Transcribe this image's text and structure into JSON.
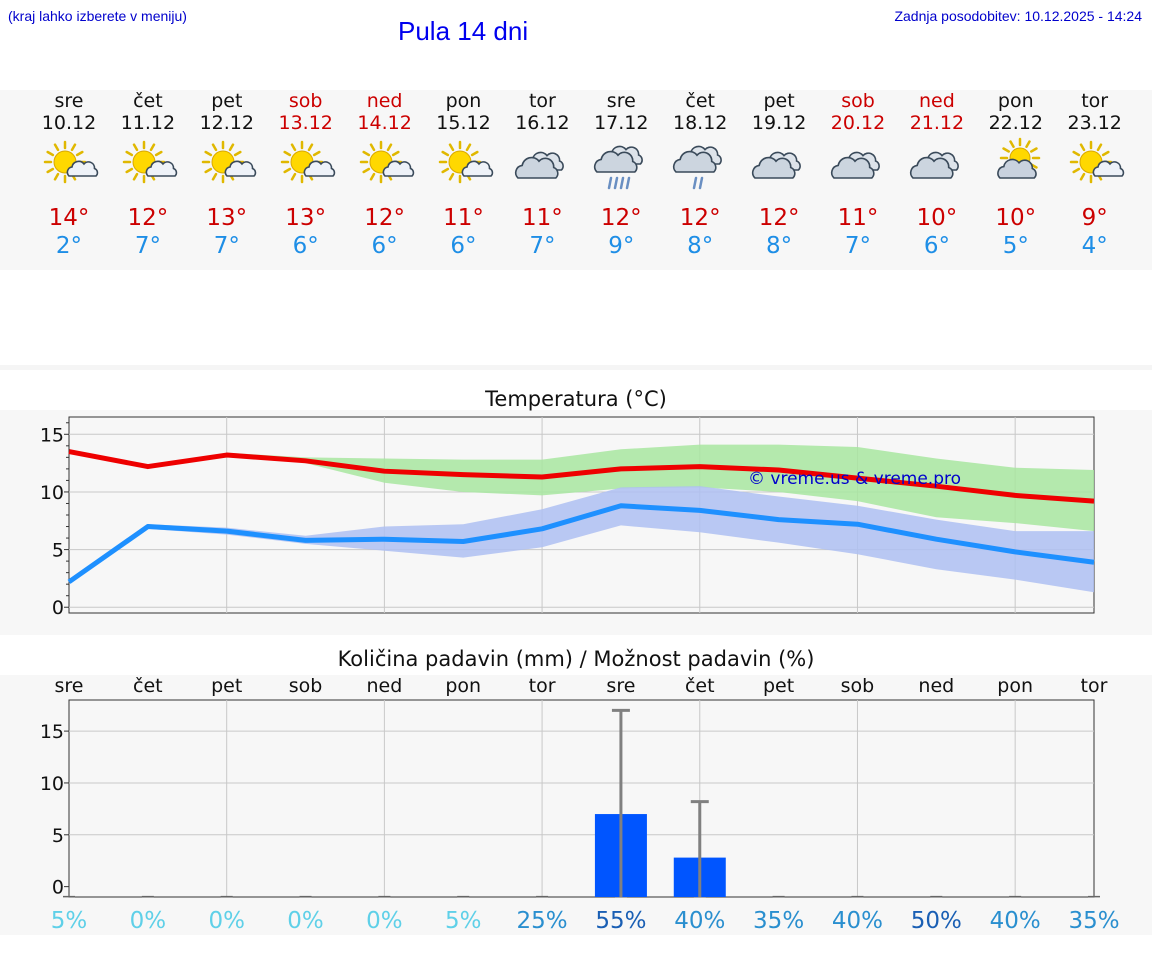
{
  "header": {
    "menu_hint": "(kraj lahko izberete v meniju)",
    "title": "Pula 14 dni",
    "last_update": "Zadnja posodobitev: 10.12.2025 - 14:24"
  },
  "colors": {
    "max_line": "#ee0000",
    "min_line": "#1e90ff",
    "max_band": "#a8e6a0",
    "min_band": "#aebff2",
    "bar": "#0055ff",
    "weekend_text": "#cc0000",
    "watermark": "#0000cc"
  },
  "days": [
    {
      "name": "sre",
      "date": "10.12",
      "weekend": false,
      "icon": "sun-cloud-icon",
      "tmax": "14°",
      "tmin": "2°"
    },
    {
      "name": "čet",
      "date": "11.12",
      "weekend": false,
      "icon": "sun-cloud-icon",
      "tmax": "12°",
      "tmin": "7°"
    },
    {
      "name": "pet",
      "date": "12.12",
      "weekend": false,
      "icon": "sun-cloud-icon",
      "tmax": "13°",
      "tmin": "7°"
    },
    {
      "name": "sob",
      "date": "13.12",
      "weekend": true,
      "icon": "sun-cloud-icon",
      "tmax": "13°",
      "tmin": "6°"
    },
    {
      "name": "ned",
      "date": "14.12",
      "weekend": true,
      "icon": "sun-cloud-icon",
      "tmax": "12°",
      "tmin": "6°"
    },
    {
      "name": "pon",
      "date": "15.12",
      "weekend": false,
      "icon": "sun-cloud-icon",
      "tmax": "11°",
      "tmin": "6°"
    },
    {
      "name": "tor",
      "date": "16.12",
      "weekend": false,
      "icon": "cloudy-icon",
      "tmax": "11°",
      "tmin": "7°"
    },
    {
      "name": "sre",
      "date": "17.12",
      "weekend": false,
      "icon": "rain-cloud-icon",
      "tmax": "12°",
      "tmin": "9°"
    },
    {
      "name": "čet",
      "date": "18.12",
      "weekend": false,
      "icon": "light-rain-cloud-icon",
      "tmax": "12°",
      "tmin": "8°"
    },
    {
      "name": "pet",
      "date": "19.12",
      "weekend": false,
      "icon": "cloudy-icon",
      "tmax": "12°",
      "tmin": "8°"
    },
    {
      "name": "sob",
      "date": "20.12",
      "weekend": true,
      "icon": "cloudy-icon",
      "tmax": "11°",
      "tmin": "7°"
    },
    {
      "name": "ned",
      "date": "21.12",
      "weekend": true,
      "icon": "cloudy-icon",
      "tmax": "10°",
      "tmin": "6°"
    },
    {
      "name": "pon",
      "date": "22.12",
      "weekend": false,
      "icon": "sun-big-cloud-icon",
      "tmax": "10°",
      "tmin": "5°"
    },
    {
      "name": "tor",
      "date": "23.12",
      "weekend": false,
      "icon": "sun-cloud-icon",
      "tmax": "9°",
      "tmin": "4°"
    }
  ],
  "chart_data": [
    {
      "type": "line",
      "title": "Temperatura (°C)",
      "watermark": "© vreme.us & vreme.pro",
      "x_count": 14,
      "ylim": [
        -0.5,
        16.5
      ],
      "yticks": [
        0,
        5,
        10,
        15
      ],
      "series": [
        {
          "name": "max",
          "values": [
            13.5,
            12.2,
            13.2,
            12.7,
            11.8,
            11.5,
            11.3,
            12.0,
            12.2,
            11.9,
            11.2,
            10.5,
            9.7,
            9.2
          ],
          "band_low": [
            13.5,
            12.0,
            13.3,
            12.5,
            10.8,
            10.0,
            9.7,
            10.3,
            10.4,
            10.0,
            9.2,
            7.8,
            7.3,
            6.6
          ],
          "band_high": [
            13.5,
            12.3,
            13.4,
            13.0,
            12.9,
            12.8,
            12.8,
            13.7,
            14.1,
            14.1,
            13.9,
            12.9,
            12.1,
            11.9
          ]
        },
        {
          "name": "min",
          "values": [
            2.2,
            7.0,
            6.6,
            5.8,
            5.9,
            5.7,
            6.8,
            8.8,
            8.4,
            7.6,
            7.2,
            5.9,
            4.8,
            3.9
          ],
          "band_low": [
            2.2,
            6.8,
            6.3,
            5.5,
            4.9,
            4.3,
            5.2,
            7.1,
            6.5,
            5.6,
            4.6,
            3.3,
            2.4,
            1.3
          ],
          "band_high": [
            2.2,
            7.2,
            6.9,
            6.2,
            7.0,
            7.2,
            8.5,
            10.4,
            10.5,
            9.6,
            8.8,
            7.6,
            6.6,
            6.6
          ]
        }
      ]
    },
    {
      "type": "bar",
      "title": "Količina padavin (mm) / Možnost padavin (%)",
      "categories": [
        "sre",
        "čet",
        "pet",
        "sob",
        "ned",
        "pon",
        "tor",
        "sre",
        "čet",
        "pet",
        "sob",
        "ned",
        "pon",
        "tor"
      ],
      "values": [
        0,
        0,
        0,
        0,
        0,
        0,
        0,
        7.0,
        2.8,
        0,
        0,
        0,
        0,
        0
      ],
      "error_high": [
        0,
        0,
        0,
        0,
        0,
        0,
        0,
        17.0,
        8.2,
        0,
        0,
        0,
        0,
        0
      ],
      "ylim": [
        -1,
        18
      ],
      "yticks": [
        0,
        5,
        10,
        15
      ],
      "probability_labels": [
        "5%",
        "0%",
        "0%",
        "0%",
        "0%",
        "5%",
        "25%",
        "55%",
        "40%",
        "35%",
        "40%",
        "50%",
        "40%",
        "35%"
      ],
      "probability_values": [
        5,
        0,
        0,
        0,
        0,
        5,
        25,
        55,
        40,
        35,
        40,
        50,
        40,
        35
      ]
    }
  ]
}
